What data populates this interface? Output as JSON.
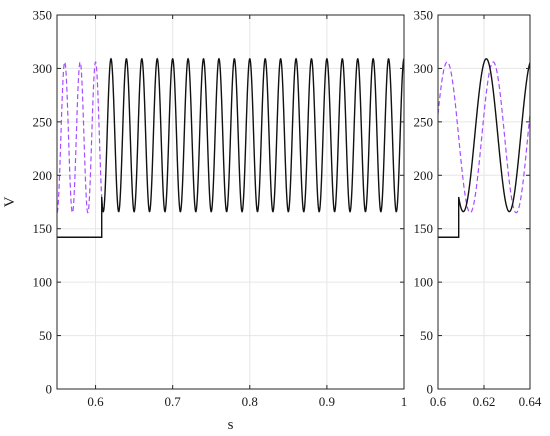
{
  "colors": {
    "measured": "#111111",
    "reference": "#a64dff"
  },
  "chart_data": [
    {
      "type": "line",
      "panel": "main",
      "xlabel": "s",
      "ylabel": "V",
      "xlim": [
        0.55,
        1.0
      ],
      "ylim": [
        0,
        350
      ],
      "xticks": [
        0.6,
        0.7,
        0.8,
        0.9,
        1
      ],
      "xtick_labels": [
        "0.6",
        "0.7",
        "0.8",
        "0.9",
        "1"
      ],
      "yticks": [
        0,
        50,
        100,
        150,
        200,
        250,
        300,
        350
      ],
      "ytick_labels": [
        "0",
        "50",
        "100",
        "150",
        "200",
        "250",
        "300",
        "350"
      ],
      "grid": true,
      "series": [
        {
          "style": "dashed",
          "x_range": [
            0.55,
            0.608
          ],
          "waveform": "sine",
          "frequency_hz": 50,
          "min": 165,
          "max": 306,
          "phase_ref_time": 0.555
        },
        {
          "style": "solid",
          "segments": [
            {
              "kind": "constant",
              "x_range": [
                0.55,
                0.608
              ],
              "value": 142
            },
            {
              "kind": "sine",
              "x_range": [
                0.608,
                1.0
              ],
              "frequency_hz": 50,
              "min": 166,
              "max": 309,
              "peak_ref_time": 0.62
            }
          ]
        }
      ]
    },
    {
      "type": "line",
      "panel": "zoom",
      "xlim": [
        0.6,
        0.64
      ],
      "ylim": [
        0,
        350
      ],
      "xticks": [
        0.6,
        0.62,
        0.64
      ],
      "xtick_labels": [
        "0.6",
        "0.62",
        "0.64"
      ],
      "yticks": [
        0,
        50,
        100,
        150,
        200,
        250,
        300,
        350
      ],
      "ytick_labels": [
        "0",
        "50",
        "100",
        "150",
        "200",
        "250",
        "300",
        "350"
      ],
      "grid": true,
      "series": [
        {
          "style": "dashed",
          "x_range": [
            0.6,
            0.64
          ],
          "waveform": "sine",
          "frequency_hz": 50,
          "min": 165,
          "max": 306,
          "peak_ref_time": 0.604
        },
        {
          "style": "solid",
          "segments": [
            {
              "kind": "constant",
              "x_range": [
                0.6,
                0.609
              ],
              "value": 142
            },
            {
              "kind": "sine",
              "x_range": [
                0.609,
                0.64
              ],
              "frequency_hz": 50,
              "min": 166,
              "max": 309,
              "peak_ref_time": 0.621
            }
          ]
        }
      ]
    }
  ]
}
